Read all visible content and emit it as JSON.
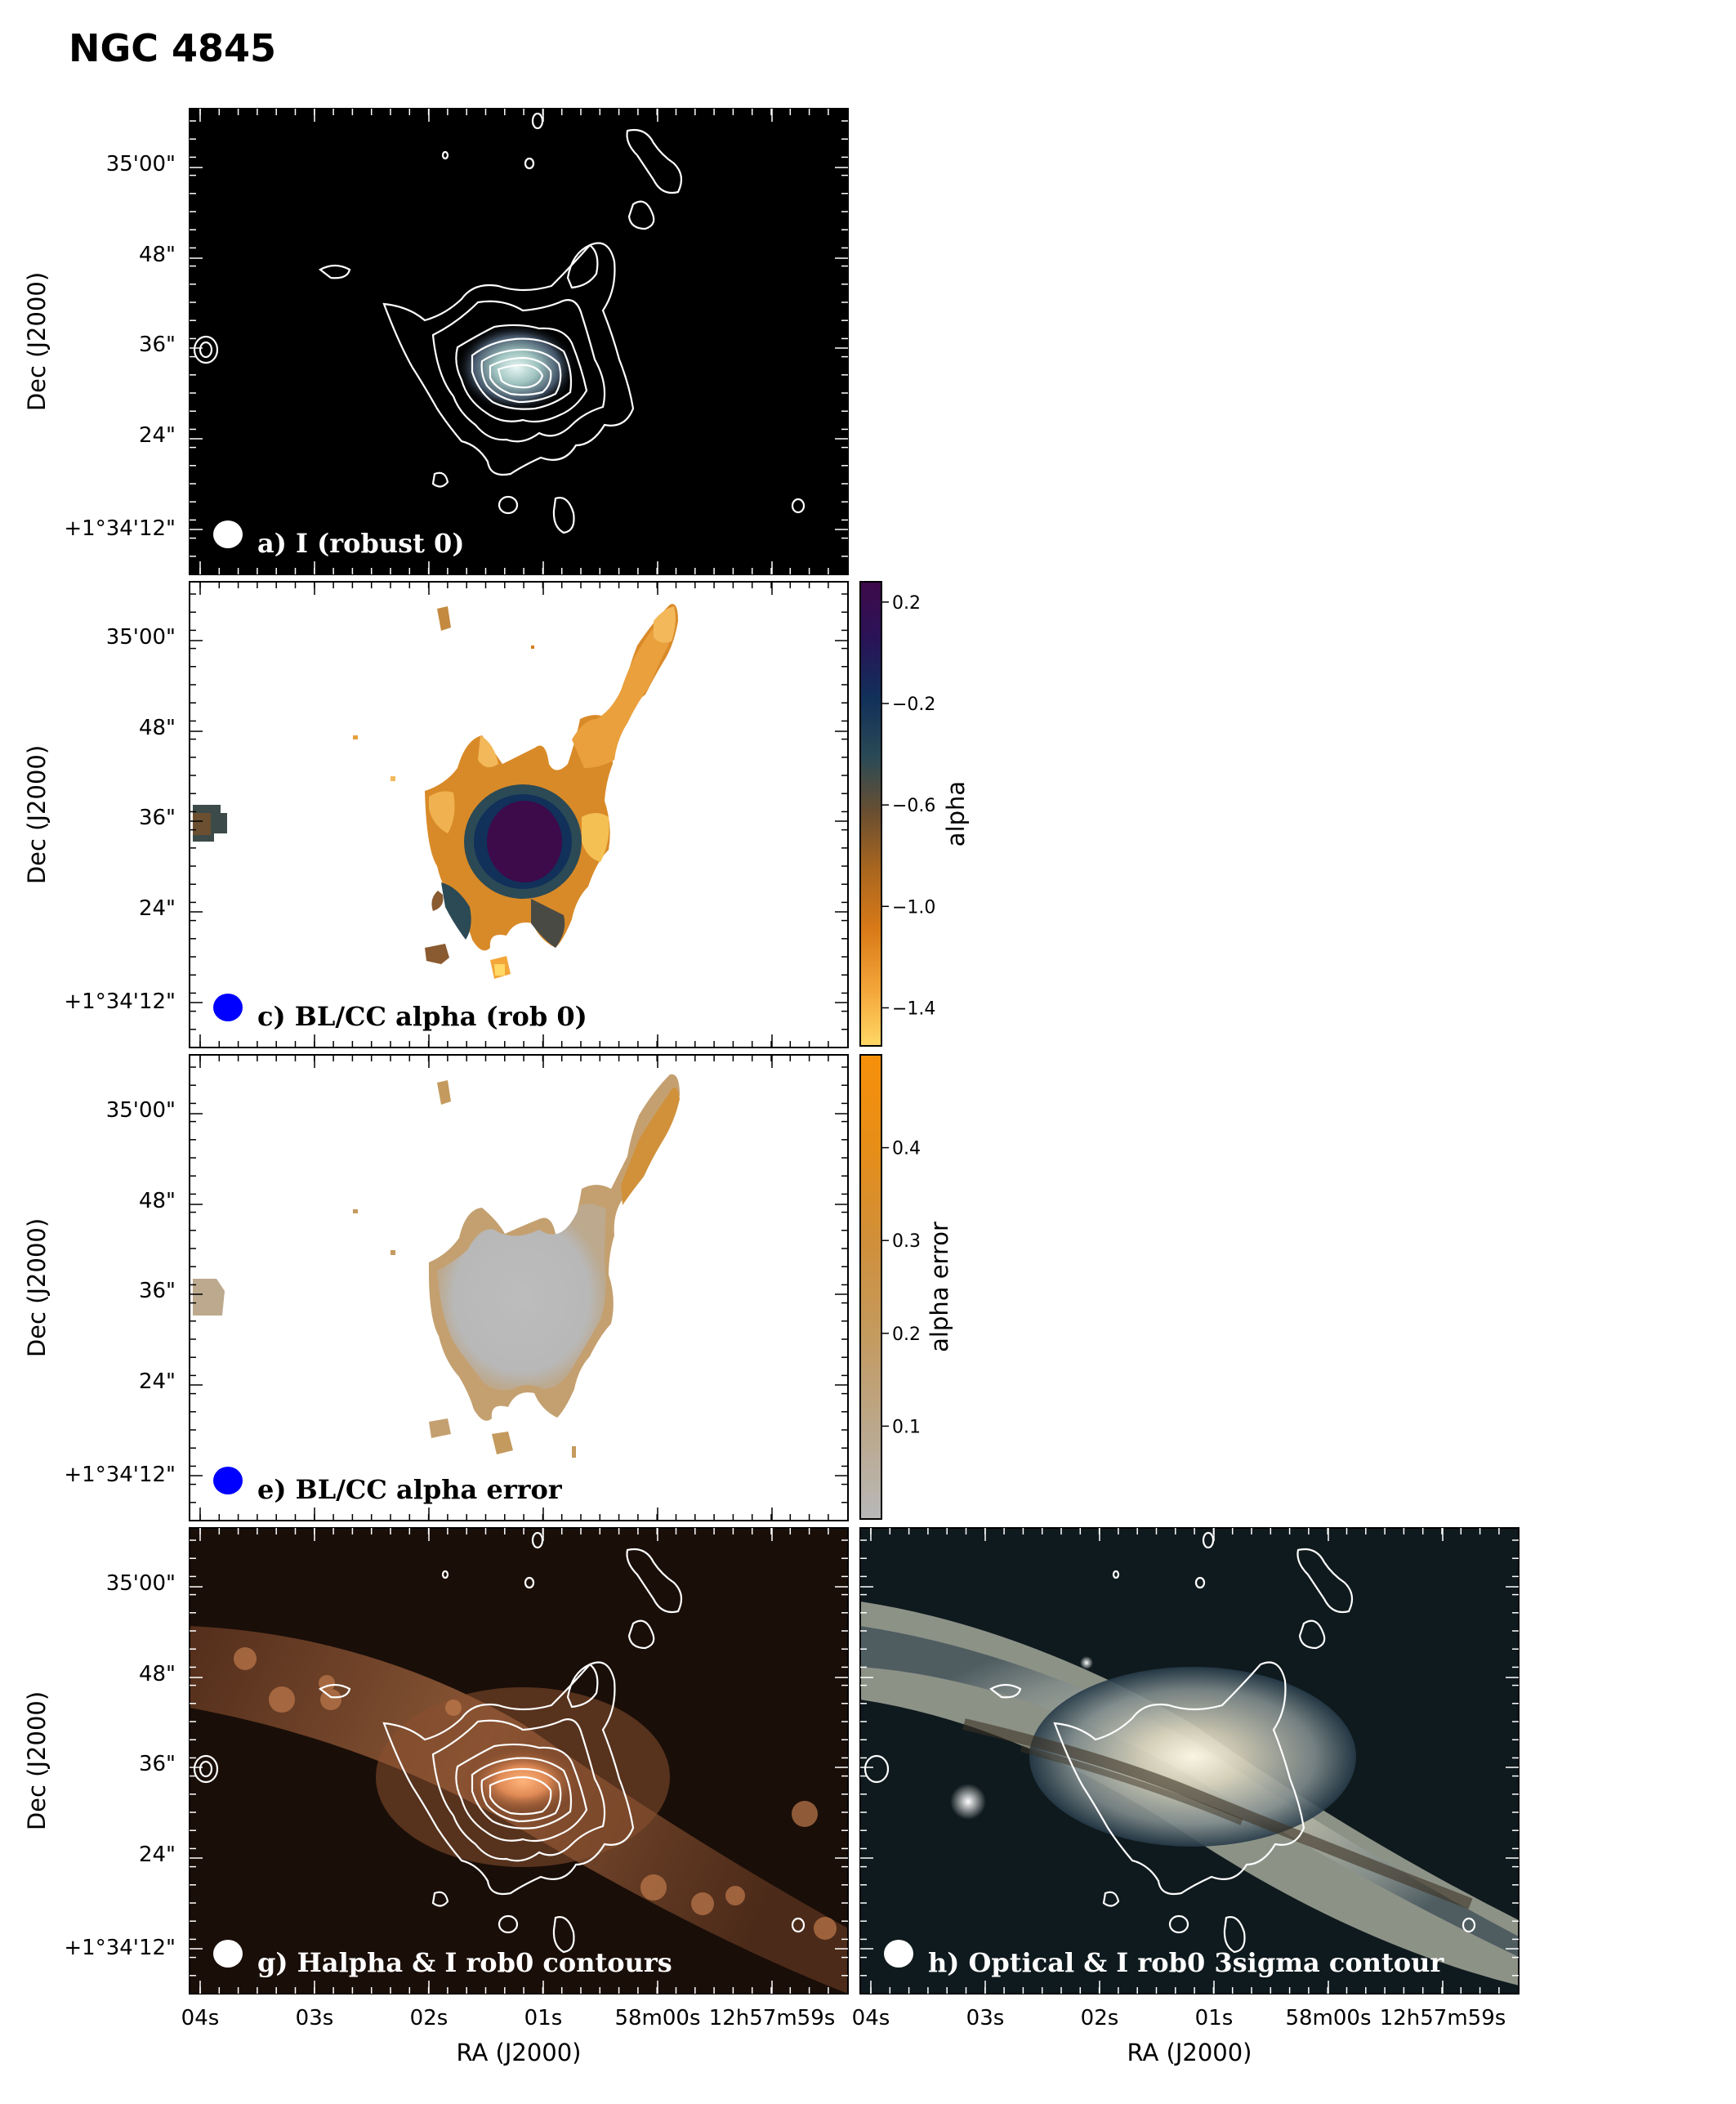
{
  "figure_title": "NGC 4845",
  "panels": [
    {
      "id": "a",
      "label": "a) I (robust 0)"
    },
    {
      "id": "c",
      "label": "c) BL/CC alpha (rob 0)"
    },
    {
      "id": "e",
      "label": "e)  BL/CC alpha error"
    },
    {
      "id": "g",
      "label": "g) Halpha & I rob0 contours"
    },
    {
      "id": "h",
      "label": "h) Optical & I rob0 3sigma contour"
    }
  ],
  "axes": {
    "dec_label": "Dec (J2000)",
    "ra_label": "RA (J2000)",
    "dec_ticks": [
      "35'00\"",
      "48\"",
      "36\"",
      "24\"",
      "+1°34'12\""
    ],
    "ra_ticks": [
      "04s",
      "03s",
      "02s",
      "01s",
      "58m00s",
      "12h57m59s"
    ]
  },
  "colorbars": {
    "alpha": {
      "label": "alpha",
      "ticks": [
        "0.2",
        "−0.2",
        "−0.6",
        "−1.0",
        "−1.4"
      ],
      "tick_values": [
        0.2,
        -0.2,
        -0.6,
        -1.0,
        -1.4
      ],
      "range": [
        -1.55,
        0.28
      ],
      "colors": [
        "#ffd866",
        "#f3a63a",
        "#d97a18",
        "#a9661f",
        "#6b4f30",
        "#2b4a55",
        "#11305a",
        "#2a1257",
        "#3d0a4a"
      ]
    },
    "alpha_error": {
      "label": "alpha error",
      "ticks": [
        "0.1",
        "0.2",
        "0.3",
        "0.4"
      ],
      "tick_values": [
        0.1,
        0.2,
        0.3,
        0.4
      ],
      "range": [
        0.0,
        0.5
      ],
      "colors": [
        "#b8b8b8",
        "#bba78a",
        "#c49a5e",
        "#d08f3a",
        "#e68e18",
        "#f7900a"
      ]
    }
  },
  "colors": {
    "beam_white": "#ffffff",
    "beam_blue": "#0000ff",
    "contour": "#ffffff"
  }
}
